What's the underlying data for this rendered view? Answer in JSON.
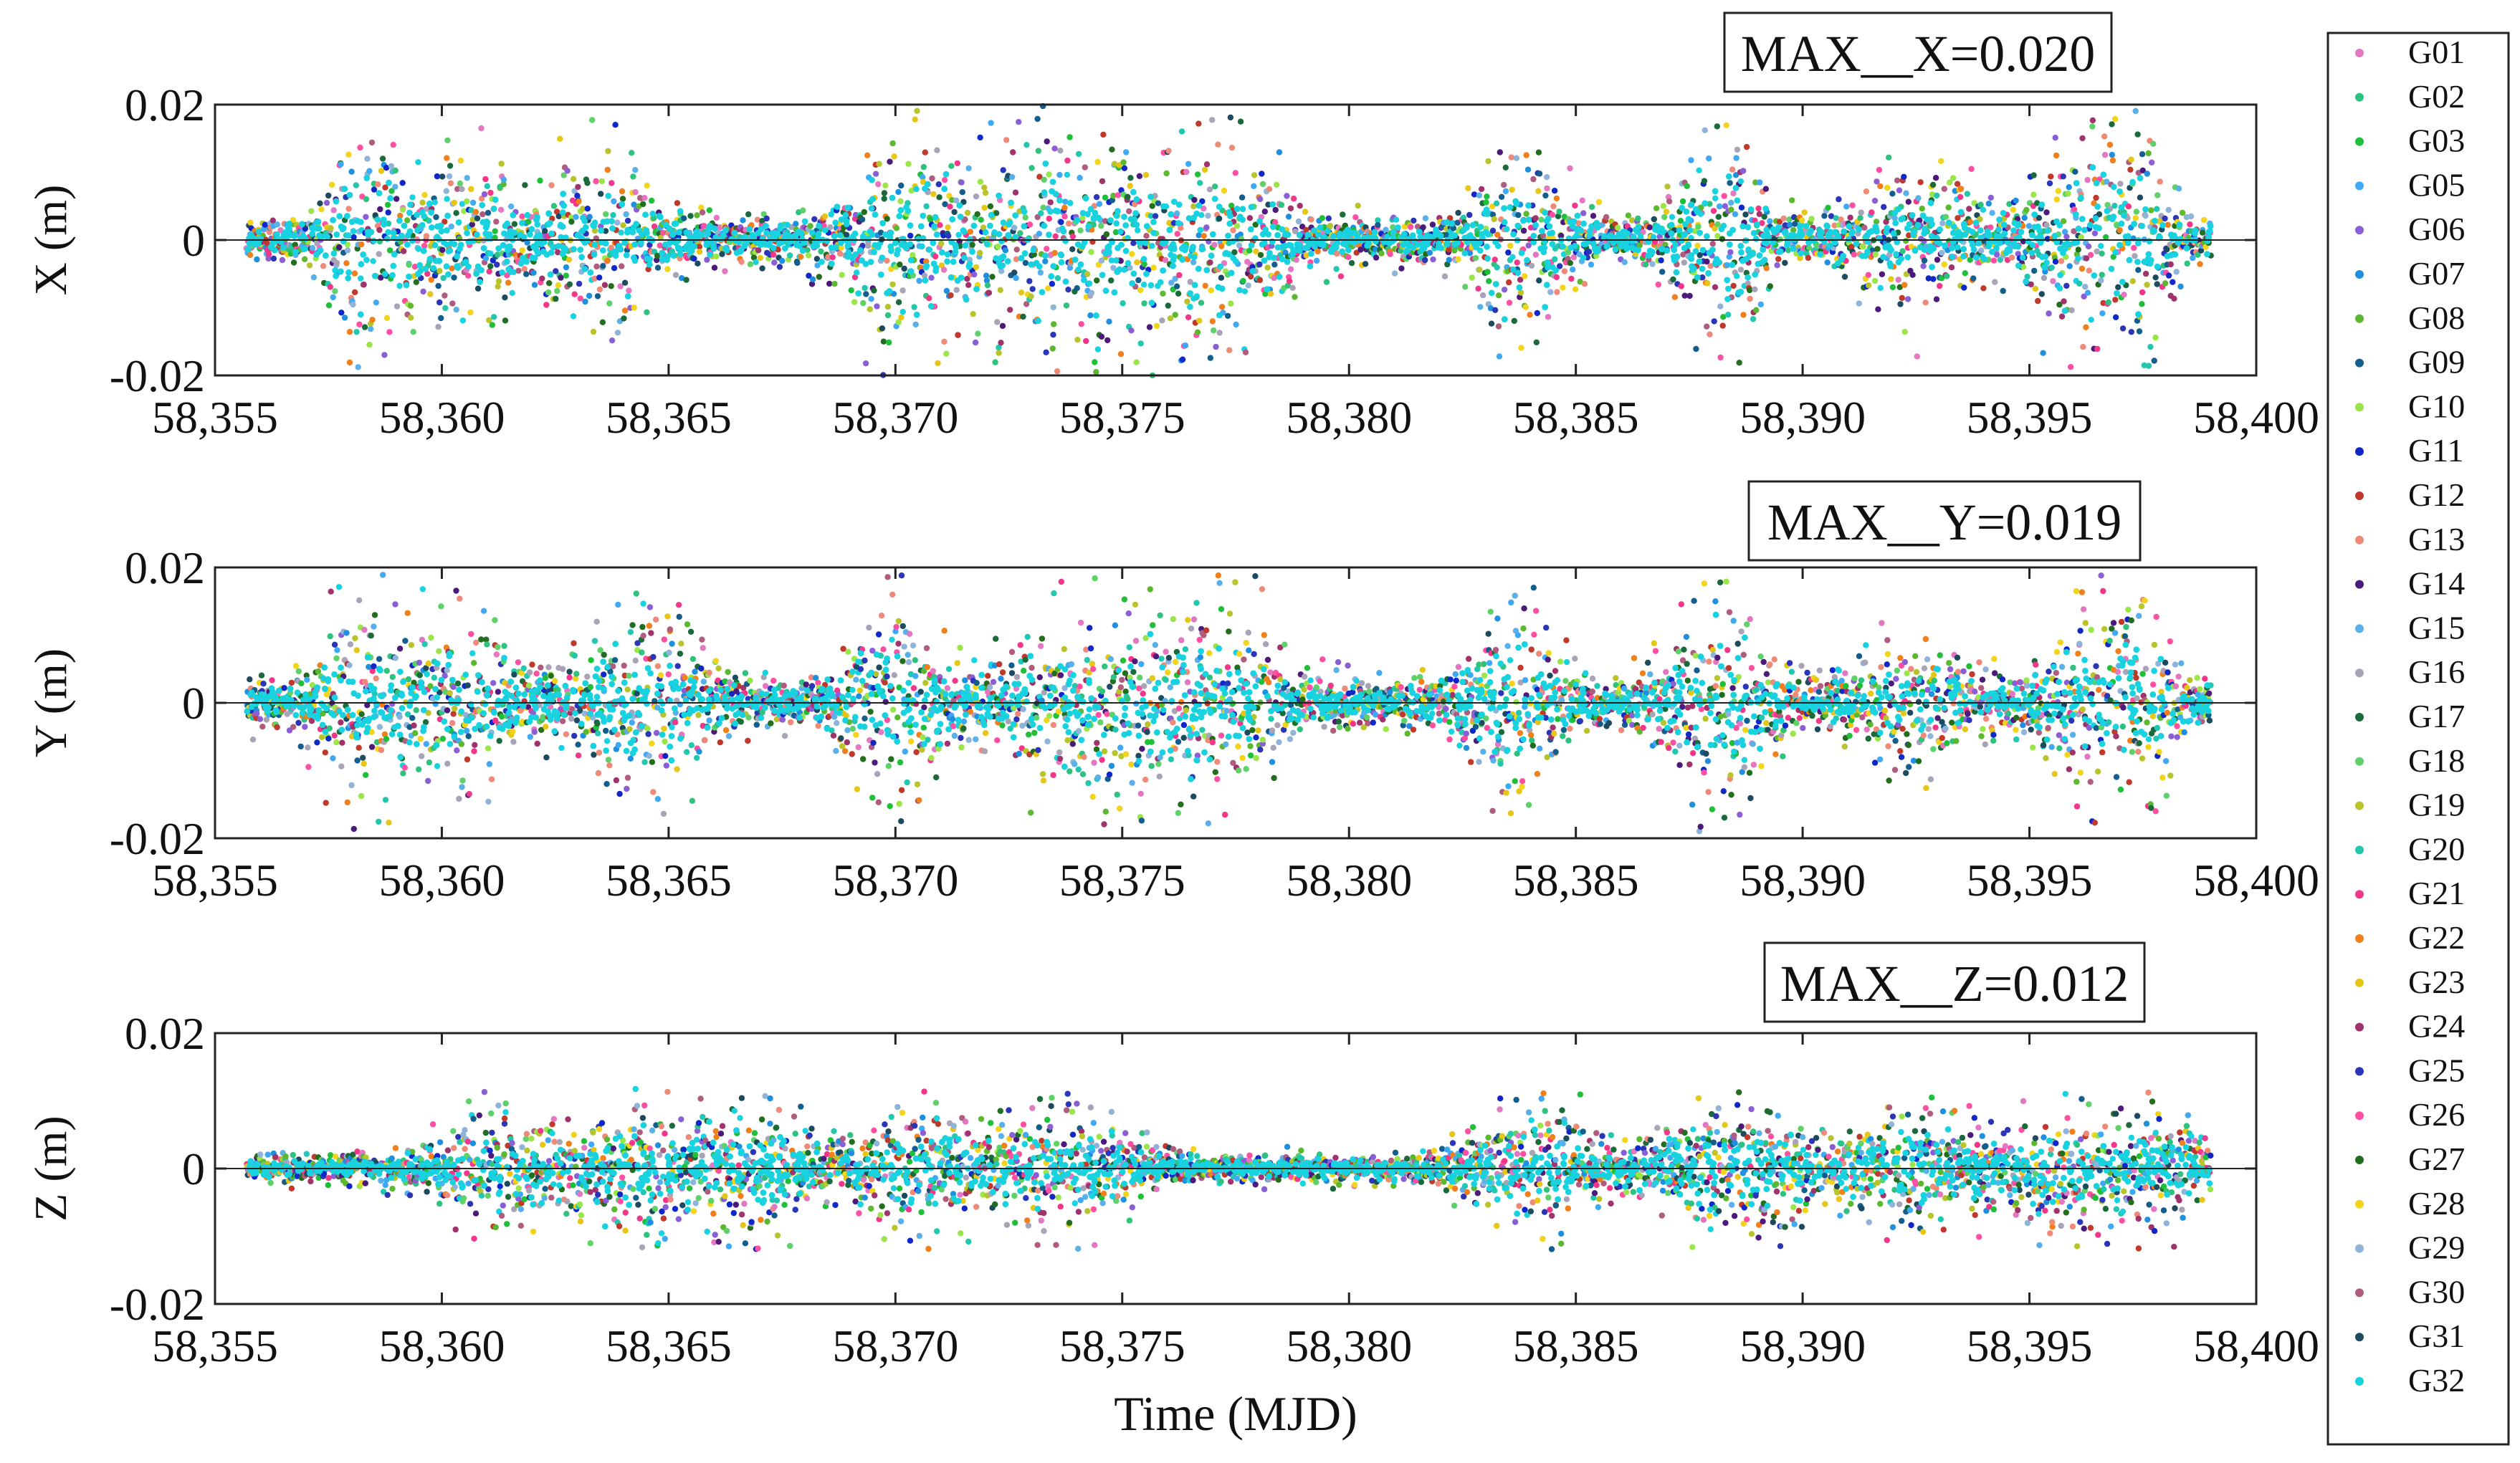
{
  "chart_data": [
    {
      "type": "scatter",
      "ylabel": "X (m)",
      "xlabel": "",
      "ylim": [
        -0.02,
        0.02
      ],
      "xlim": [
        58355,
        58400
      ],
      "data_range": [
        58355.7,
        58399
      ],
      "yticks": [
        "0.02",
        "0",
        "-0.02"
      ],
      "xticks": [
        "58,355",
        "58,360",
        "58,365",
        "58,370",
        "58,375",
        "58,380",
        "58,385",
        "58,390",
        "58,395",
        "58,400"
      ],
      "annotation": "MAX__X=0.020",
      "max_abs": 0.02,
      "base_amp": 0.004,
      "bursts": [
        {
          "center": 58358.1,
          "width": 0.5,
          "amp": 0.017
        },
        {
          "center": 58360.3,
          "width": 1.2,
          "amp": 0.011
        },
        {
          "center": 58363.6,
          "width": 1.0,
          "amp": 0.01
        },
        {
          "center": 58370.0,
          "width": 0.7,
          "amp": 0.018
        },
        {
          "center": 58372.0,
          "width": 1.5,
          "amp": 0.01
        },
        {
          "center": 58374.5,
          "width": 1.2,
          "amp": 0.013
        },
        {
          "center": 58377.0,
          "width": 1.2,
          "amp": 0.014
        },
        {
          "center": 58383.8,
          "width": 0.7,
          "amp": 0.015
        },
        {
          "center": 58388.2,
          "width": 0.7,
          "amp": 0.016
        },
        {
          "center": 58392.6,
          "width": 1.0,
          "amp": 0.008
        },
        {
          "center": 58396.1,
          "width": 0.8,
          "amp": 0.012
        },
        {
          "center": 58397.2,
          "width": 0.6,
          "amp": 0.015
        }
      ]
    },
    {
      "type": "scatter",
      "ylabel": "Y (m)",
      "xlabel": "",
      "ylim": [
        -0.02,
        0.02
      ],
      "xlim": [
        58355,
        58400
      ],
      "data_range": [
        58355.7,
        58399
      ],
      "yticks": [
        "0.02",
        "0",
        "-0.02"
      ],
      "xticks": [
        "58,355",
        "58,360",
        "58,365",
        "58,370",
        "58,375",
        "58,380",
        "58,385",
        "58,390",
        "58,395",
        "58,400"
      ],
      "annotation": "MAX__Y=0.019",
      "max_abs": 0.019,
      "base_amp": 0.004,
      "bursts": [
        {
          "center": 58358.0,
          "width": 0.5,
          "amp": 0.017
        },
        {
          "center": 58360.2,
          "width": 1.2,
          "amp": 0.013
        },
        {
          "center": 58364.5,
          "width": 1.0,
          "amp": 0.015
        },
        {
          "center": 58370.0,
          "width": 0.7,
          "amp": 0.017
        },
        {
          "center": 58374.5,
          "width": 1.5,
          "amp": 0.013
        },
        {
          "center": 58377.0,
          "width": 1.0,
          "amp": 0.014
        },
        {
          "center": 58383.6,
          "width": 0.7,
          "amp": 0.016
        },
        {
          "center": 58388.2,
          "width": 0.8,
          "amp": 0.015
        },
        {
          "center": 58392.5,
          "width": 1.0,
          "amp": 0.008
        },
        {
          "center": 58396.4,
          "width": 0.8,
          "amp": 0.013
        },
        {
          "center": 58397.4,
          "width": 0.6,
          "amp": 0.013
        }
      ]
    },
    {
      "type": "scatter",
      "ylabel": "Z (m)",
      "xlabel": "Time (MJD)",
      "ylim": [
        -0.02,
        0.02
      ],
      "xlim": [
        58355,
        58400
      ],
      "data_range": [
        58355.7,
        58399
      ],
      "yticks": [
        "0.02",
        "0",
        "-0.02"
      ],
      "xticks": [
        "58,355",
        "58,360",
        "58,365",
        "58,370",
        "58,375",
        "58,380",
        "58,385",
        "58,390",
        "58,395",
        "58,400"
      ],
      "annotation": "MAX__Z=0.012",
      "max_abs": 0.012,
      "base_amp": 0.0025,
      "bursts": [
        {
          "center": 58361.2,
          "width": 1.0,
          "amp": 0.009
        },
        {
          "center": 58364.7,
          "width": 1.1,
          "amp": 0.011
        },
        {
          "center": 58366.5,
          "width": 1.2,
          "amp": 0.009
        },
        {
          "center": 58370.5,
          "width": 1.0,
          "amp": 0.008
        },
        {
          "center": 58373.5,
          "width": 1.2,
          "amp": 0.01
        },
        {
          "center": 58384.0,
          "width": 1.0,
          "amp": 0.009
        },
        {
          "center": 58388.5,
          "width": 1.2,
          "amp": 0.011
        },
        {
          "center": 58392.5,
          "width": 1.1,
          "amp": 0.009
        },
        {
          "center": 58395.8,
          "width": 1.0,
          "amp": 0.009
        },
        {
          "center": 58398.0,
          "width": 0.7,
          "amp": 0.008
        }
      ]
    }
  ],
  "legend": {
    "entries": [
      {
        "label": "G01",
        "color": "#e377c2"
      },
      {
        "label": "G02",
        "color": "#2ec27e"
      },
      {
        "label": "G03",
        "color": "#1fbf3a"
      },
      {
        "label": "G05",
        "color": "#3fa9f5"
      },
      {
        "label": "G06",
        "color": "#8a5fd6"
      },
      {
        "label": "G07",
        "color": "#1f8fe0"
      },
      {
        "label": "G08",
        "color": "#5cb82f"
      },
      {
        "label": "G09",
        "color": "#135e8c"
      },
      {
        "label": "G10",
        "color": "#9ae64a"
      },
      {
        "label": "G11",
        "color": "#1028c8"
      },
      {
        "label": "G12",
        "color": "#c0392b"
      },
      {
        "label": "G13",
        "color": "#f08a78"
      },
      {
        "label": "G14",
        "color": "#4b1a7a"
      },
      {
        "label": "G15",
        "color": "#5ab0e8"
      },
      {
        "label": "G16",
        "color": "#a9a3b8"
      },
      {
        "label": "G17",
        "color": "#1b6b3a"
      },
      {
        "label": "G18",
        "color": "#5ed169"
      },
      {
        "label": "G19",
        "color": "#b8c42a"
      },
      {
        "label": "G20",
        "color": "#22c7b0"
      },
      {
        "label": "G21",
        "color": "#f2378a"
      },
      {
        "label": "G22",
        "color": "#f07f1c"
      },
      {
        "label": "G23",
        "color": "#e6c619"
      },
      {
        "label": "G24",
        "color": "#a0336b"
      },
      {
        "label": "G25",
        "color": "#2a35b8"
      },
      {
        "label": "G26",
        "color": "#ff4fa3"
      },
      {
        "label": "G27",
        "color": "#236e1e"
      },
      {
        "label": "G28",
        "color": "#f2d41c"
      },
      {
        "label": "G29",
        "color": "#8fb3d9"
      },
      {
        "label": "G30",
        "color": "#b05c7e"
      },
      {
        "label": "G31",
        "color": "#1c4a5e"
      },
      {
        "label": "G32",
        "color": "#19d2e0"
      }
    ]
  }
}
